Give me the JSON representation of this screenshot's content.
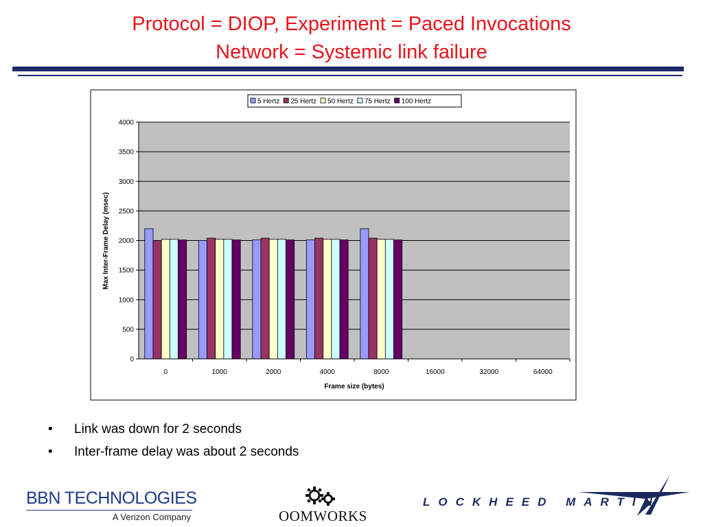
{
  "slide": {
    "title_line_1": "Protocol = DIOP, Experiment = Paced Invocations",
    "title_line_2": "Network = Systemic link failure",
    "title_color": "#e8141b",
    "rule_color": "#1d2a6b",
    "bullets": [
      "Link was down for 2 seconds",
      "Inter-frame delay was about 2 seconds"
    ],
    "bullet_symbol": "•"
  },
  "logos": {
    "bbn": {
      "name": "BBN TECHNOLOGIES",
      "subtitle": "A Verizon Company"
    },
    "oomworks": {
      "name": "OOMWORKS",
      "icon": "gears-icon"
    },
    "lockheed": {
      "name": "LOCKHEED MARTIN",
      "icon": "star-icon"
    }
  },
  "chart_data": {
    "type": "bar",
    "title": "",
    "xlabel": "Frame size (bytes)",
    "ylabel": "Max Inter-Frame Delay (msec)",
    "categories": [
      "0",
      "1000",
      "2000",
      "4000",
      "8000",
      "16000",
      "32000",
      "64000"
    ],
    "ylim": [
      0,
      4000
    ],
    "yticks": [
      0,
      500,
      1000,
      1500,
      2000,
      2500,
      3000,
      3500,
      4000
    ],
    "grid": true,
    "legend_position": "top",
    "plot_background": "#c0c0c0",
    "series": [
      {
        "name": "5 Hertz",
        "color": "#9999ff",
        "values": [
          2200,
          2000,
          2010,
          2010,
          2200,
          null,
          null,
          null
        ]
      },
      {
        "name": "25 Hertz",
        "color": "#993366",
        "values": [
          2000,
          2040,
          2040,
          2040,
          2040,
          null,
          null,
          null
        ]
      },
      {
        "name": "50 Hertz",
        "color": "#ffffcc",
        "values": [
          2020,
          2020,
          2020,
          2020,
          2020,
          null,
          null,
          null
        ]
      },
      {
        "name": "75 Hertz",
        "color": "#ccffff",
        "values": [
          2020,
          2020,
          2020,
          2020,
          2020,
          null,
          null,
          null
        ]
      },
      {
        "name": "100 Hertz",
        "color": "#660066",
        "values": [
          2010,
          2010,
          2010,
          2010,
          2010,
          null,
          null,
          null
        ]
      }
    ]
  }
}
